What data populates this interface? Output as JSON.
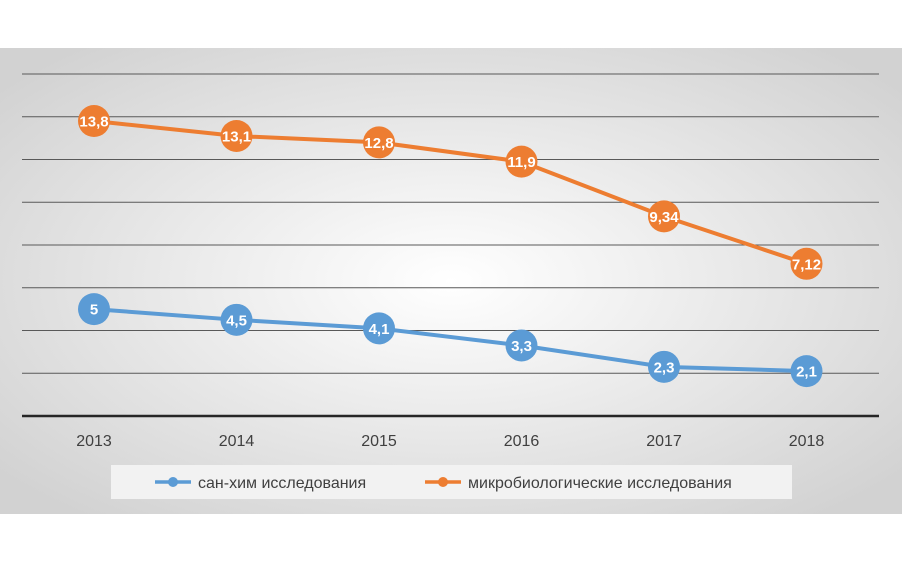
{
  "chart_data": {
    "type": "line",
    "categories": [
      "2013",
      "2014",
      "2015",
      "2016",
      "2017",
      "2018"
    ],
    "series": [
      {
        "name": "сан-хим исследования",
        "values": [
          5,
          4.5,
          4.1,
          3.3,
          2.3,
          2.1
        ],
        "labels": [
          "5",
          "4,5",
          "4,1",
          "3,3",
          "2,3",
          "2,1"
        ],
        "color": "#5B9BD5"
      },
      {
        "name": "микробиологические исследования",
        "values": [
          13.8,
          13.1,
          12.8,
          11.9,
          9.34,
          7.12
        ],
        "labels": [
          "13,8",
          "13,1",
          "12,8",
          "11,9",
          "9,34",
          "7,12"
        ],
        "color": "#ED7D31"
      }
    ],
    "ylim": [
      0,
      16
    ],
    "grid": true,
    "legend_position": "bottom",
    "data_label_color": "#ffffff",
    "background_gradient": [
      "#ffffff",
      "#d2d2d2"
    ],
    "gridline_color": "#595959",
    "axis_text_color": "#404040",
    "legend_background": "#f2f2f2"
  }
}
